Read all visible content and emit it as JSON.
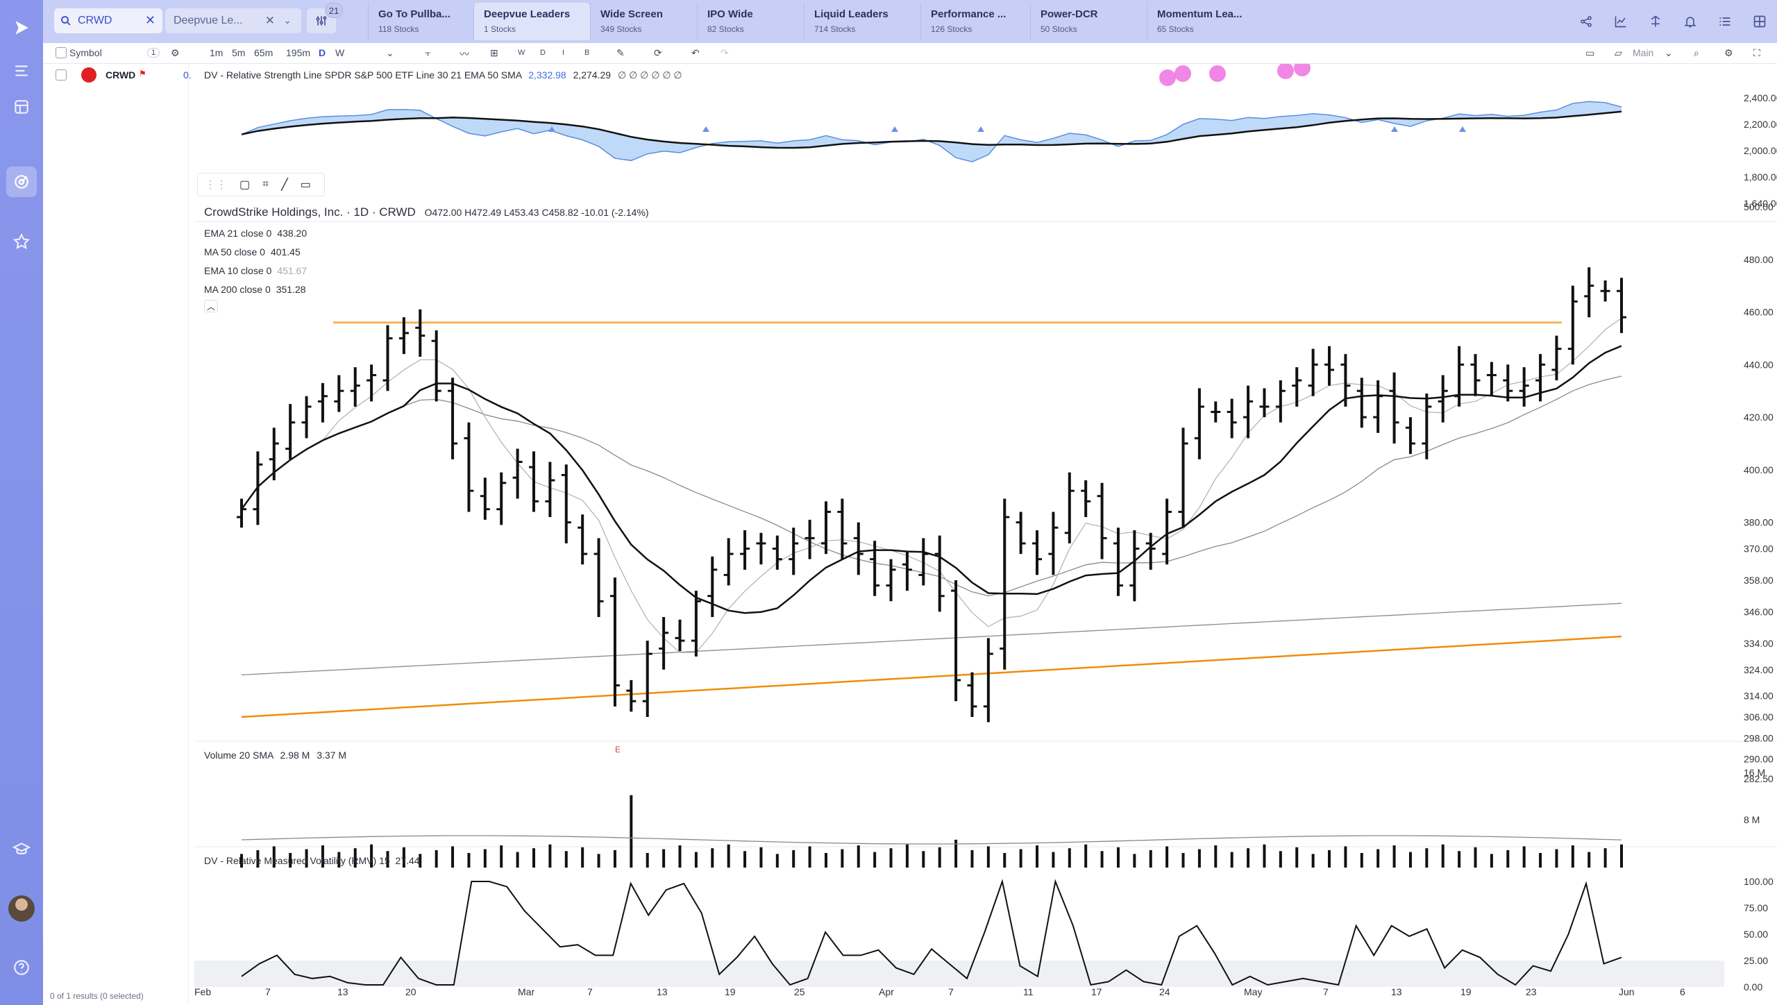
{
  "search": {
    "query": "CRWD"
  },
  "list_selector": {
    "label": "Deepvue Le..."
  },
  "filter": {
    "badge": "21"
  },
  "screens": [
    {
      "name": "Go To Pullba...",
      "count": "118 Stocks"
    },
    {
      "name": "Deepvue Leaders",
      "count": "1 Stocks"
    },
    {
      "name": "Wide Screen",
      "count": "349 Stocks"
    },
    {
      "name": "IPO Wide",
      "count": "82 Stocks"
    },
    {
      "name": "Liquid Leaders",
      "count": "714 Stocks"
    },
    {
      "name": "Performance ...",
      "count": "126 Stocks"
    },
    {
      "name": "Power-DCR",
      "count": "50 Stocks"
    },
    {
      "name": "Momentum Lea...",
      "count": "65 Stocks"
    }
  ],
  "toolbar": {
    "symbol_label": "Symbol",
    "symbol_count": "1",
    "intervals": [
      "1m",
      "5m",
      "65m",
      "195m",
      "D",
      "W"
    ],
    "active_interval": "D",
    "period_buttons": [
      "W",
      "D",
      "I",
      "B"
    ],
    "layout_label": "Main"
  },
  "symbols": [
    {
      "ticker": "CRWD",
      "value": "0."
    }
  ],
  "rs_panel": {
    "title": "DV - Relative Strength Line SPDR S&P 500 ETF Line 30 21 EMA 50 SMA",
    "v1": "2,332.98",
    "v2": "2,274.29",
    "tail": "∅ ∅ ∅ ∅ ∅ ∅",
    "axis": [
      "2,400.00",
      "2,200.00",
      "2,000.00",
      "1,800.00",
      "1,640.00"
    ]
  },
  "price_panel": {
    "header": "CrowdStrike Holdings, Inc. · 1D · CRWD",
    "ohlc": "O472.00  H472.49  L453.43  C458.82  -10.01 (-2.14%)",
    "indicators": [
      {
        "label": "EMA 21 close 0",
        "value": "438.20",
        "muted": false
      },
      {
        "label": "MA 50 close 0",
        "value": "401.45",
        "muted": false
      },
      {
        "label": "EMA 10 close 0",
        "value": "451.67",
        "muted": true
      },
      {
        "label": "MA 200 close 0",
        "value": "351.28",
        "muted": false
      }
    ],
    "axis": [
      "500.00",
      "480.00",
      "460.00",
      "440.00",
      "420.00",
      "400.00",
      "380.00",
      "370.00",
      "358.00",
      "346.00",
      "334.00",
      "324.00",
      "314.00",
      "306.00",
      "298.00",
      "290.00",
      "282.50"
    ],
    "earnings_marker": "E"
  },
  "volume_panel": {
    "title": "Volume 20 SMA",
    "v1": "2.98 M",
    "v2": "3.37 M",
    "axis": [
      "16 M",
      "8 M"
    ]
  },
  "rmv_panel": {
    "title": "DV - Relative Measured Volatility (RMV) 15",
    "value": "27.44",
    "axis": [
      "100.00",
      "75.00",
      "50.00",
      "25.00",
      "0.00"
    ]
  },
  "x_axis": [
    "Feb",
    "7",
    "13",
    "20",
    "Mar",
    "7",
    "13",
    "19",
    "25",
    "Apr",
    "7",
    "11",
    "17",
    "24",
    "May",
    "7",
    "13",
    "19",
    "23",
    "Jun",
    "6"
  ],
  "footer": "0 of 1 results (0 selected)",
  "chart_data": {
    "type": "ohlc",
    "symbol": "CRWD",
    "dates": [
      "Feb",
      "7",
      "13",
      "20",
      "Mar",
      "7",
      "13",
      "19",
      "25",
      "Apr",
      "7",
      "11",
      "17",
      "24",
      "May",
      "7",
      "13",
      "19",
      "23",
      "Jun",
      "6"
    ],
    "close_series": [
      385,
      402,
      410,
      418,
      424,
      428,
      430,
      432,
      436,
      450,
      452,
      451,
      430,
      410,
      392,
      385,
      395,
      403,
      388,
      396,
      380,
      368,
      350,
      318,
      312,
      330,
      338,
      335,
      350,
      362,
      368,
      370,
      372,
      366,
      372,
      374,
      384,
      372,
      368,
      356,
      362,
      362,
      368,
      352,
      320,
      310,
      330,
      382,
      372,
      366,
      378,
      392,
      388,
      374,
      356,
      370,
      370,
      384,
      410,
      424,
      422,
      418,
      426,
      424,
      430,
      434,
      440,
      438,
      432,
      420,
      428,
      418,
      410,
      424,
      430,
      440,
      434,
      436,
      430,
      432,
      440,
      446,
      464,
      470,
      468,
      458
    ],
    "ema21_last": 438.2,
    "ma50_last": 401.45,
    "ema10_last": 451.67,
    "ma200_last": 351.28,
    "resistance": 456,
    "rmv": [
      10,
      22,
      30,
      12,
      8,
      10,
      4,
      2,
      2,
      28,
      8,
      2,
      2,
      100,
      100,
      95,
      72,
      55,
      38,
      40,
      30,
      30,
      98,
      68,
      92,
      98,
      70,
      12,
      28,
      48,
      22,
      2,
      8,
      52,
      30,
      30,
      35,
      18,
      12,
      36,
      22,
      8,
      52,
      100,
      20,
      10,
      100,
      58,
      2,
      5,
      16,
      5,
      2,
      48,
      58,
      32,
      2,
      10,
      2,
      5,
      8,
      5,
      2,
      58,
      30,
      58,
      48,
      55,
      18,
      35,
      28,
      12,
      2,
      20,
      15,
      50,
      98,
      22,
      28
    ]
  }
}
